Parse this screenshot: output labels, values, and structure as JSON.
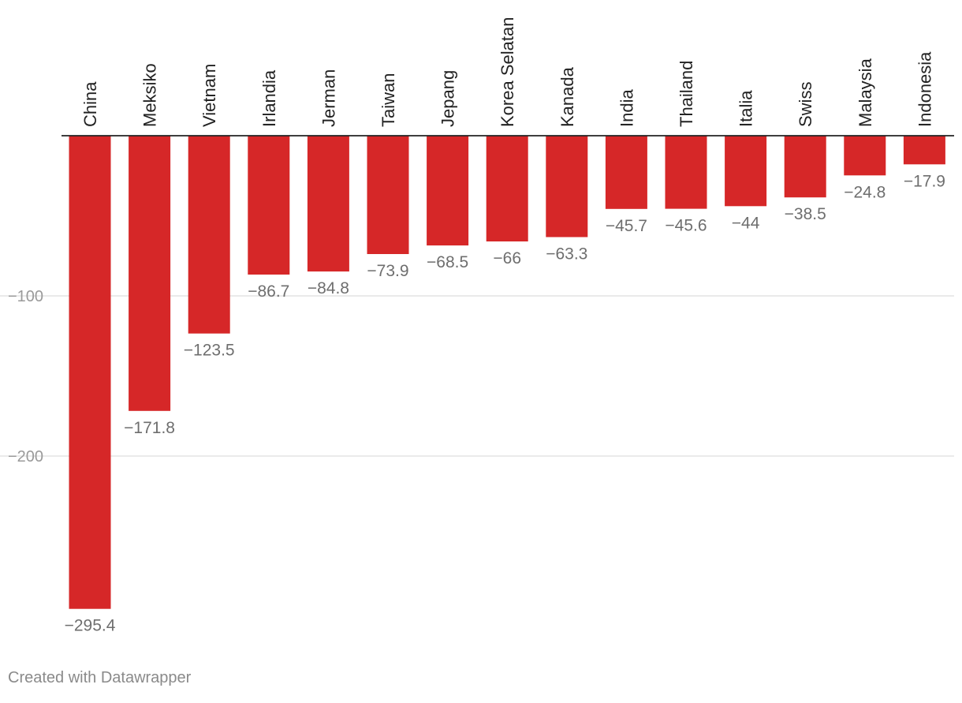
{
  "chart_data": {
    "type": "bar",
    "orientation": "vertical",
    "categories": [
      "China",
      "Meksiko",
      "Vietnam",
      "Irlandia",
      "Jerman",
      "Taiwan",
      "Jepang",
      "Korea Selatan",
      "Kanada",
      "India",
      "Thailand",
      "Italia",
      "Swiss",
      "Malaysia",
      "Indonesia"
    ],
    "values": [
      -295.4,
      -171.8,
      -123.5,
      -86.7,
      -84.8,
      -73.9,
      -68.5,
      -66,
      -63.3,
      -45.7,
      -45.6,
      -44,
      -38.5,
      -24.8,
      -17.9
    ],
    "data_labels": [
      "−295.4",
      "−171.8",
      "−123.5",
      "−86.7",
      "−84.8",
      "−73.9",
      "−68.5",
      "−66",
      "−63.3",
      "−45.7",
      "−45.6",
      "−44",
      "−38.5",
      "−24.8",
      "−17.9"
    ],
    "y_ticks": [
      -100,
      -200
    ],
    "y_tick_labels": [
      "−100",
      "−200"
    ],
    "ylim": [
      -300,
      0
    ],
    "category_label_position": "top",
    "category_label_rotation": "vertical",
    "grid": true,
    "bar_color": "#d62728",
    "label_color": "#6e6e6e",
    "tick_label_color": "#9a9a9a",
    "grid_color": "#e3e3e3",
    "baseline_color": "#222222",
    "title": "",
    "xlabel": "",
    "ylabel": ""
  },
  "footer": {
    "credit": "Created with Datawrapper"
  }
}
